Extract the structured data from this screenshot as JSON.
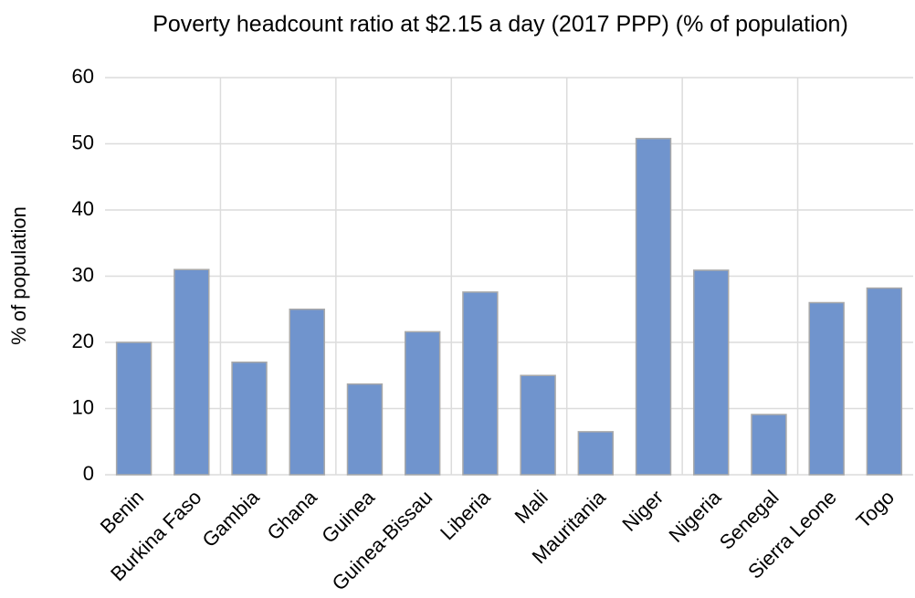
{
  "chart_data": {
    "type": "bar",
    "title": "Poverty headcount ratio at $2.15 a day (2017 PPP) (% of population)",
    "y_label": "% of population",
    "categories": [
      "Benin",
      "Burkina Faso",
      "Gambia",
      "Ghana",
      "Guinea",
      "Guinea-Bissau",
      "Liberia",
      "Mali",
      "Mauritania",
      "Niger",
      "Nigeria",
      "Senegal",
      "Sierra Leone",
      "Togo"
    ],
    "values": [
      20,
      31,
      17,
      25,
      13.7,
      21.6,
      27.6,
      15,
      6.5,
      50.8,
      30.9,
      9.1,
      26,
      28.2
    ],
    "color": "#7094cd",
    "ylim": [
      0,
      60
    ],
    "yticks": [
      0,
      10,
      20,
      30,
      40,
      50,
      60
    ],
    "grid": true
  }
}
